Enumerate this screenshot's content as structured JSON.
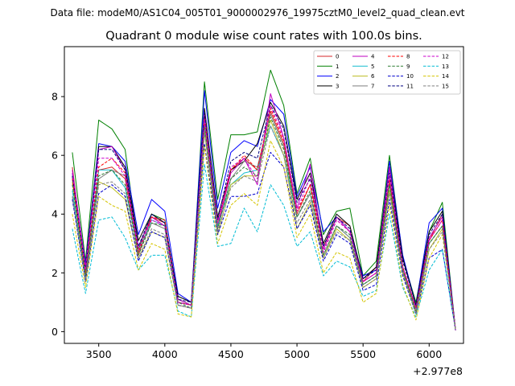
{
  "suptitle": "Data file: modeM0/AS1C04_005T01_9000002976_19975cztM0_level2_quad_clean.evt",
  "chart_data": {
    "type": "line",
    "title": "Quadrant 0 module wise count rates with 100.0s bins.",
    "xlabel": "",
    "ylabel": "",
    "x_offset_label": "+2.977e8",
    "xlim": [
      3240,
      6260
    ],
    "ylim": [
      -0.4,
      9.7
    ],
    "x_ticks": [
      3500,
      4000,
      4500,
      5000,
      5500,
      6000
    ],
    "x_tick_labels": [
      "3500",
      "4000",
      "4500",
      "5000",
      "5500",
      "6000"
    ],
    "y_ticks": [
      0,
      2,
      4,
      6,
      8
    ],
    "y_tick_labels": [
      "0",
      "2",
      "4",
      "6",
      "8"
    ],
    "grid": false,
    "legend_position": "top-right",
    "x": [
      3300,
      3400,
      3500,
      3600,
      3700,
      3800,
      3900,
      4000,
      4100,
      4200,
      4300,
      4400,
      4500,
      4600,
      4700,
      4800,
      4900,
      5000,
      5100,
      5200,
      5300,
      5400,
      5500,
      5600,
      5700,
      5800,
      5900,
      6000,
      6100,
      6200
    ],
    "series": [
      {
        "name": "0",
        "color": "#d62728",
        "dash": "solid",
        "values": [
          5.6,
          2.0,
          5.5,
          5.6,
          5.2,
          2.6,
          3.9,
          3.7,
          1.0,
          0.9,
          7.1,
          3.6,
          5.5,
          5.9,
          5.5,
          7.5,
          6.4,
          4.0,
          5.0,
          2.9,
          3.9,
          3.6,
          1.7,
          2.2,
          5.1,
          2.2,
          0.8,
          3.1,
          4.0,
          0.05
        ]
      },
      {
        "name": "1",
        "color": "#008000",
        "dash": "solid",
        "values": [
          6.1,
          2.4,
          7.2,
          6.9,
          6.2,
          2.8,
          4.0,
          3.8,
          1.1,
          0.9,
          8.5,
          4.5,
          6.7,
          6.7,
          6.8,
          8.9,
          7.7,
          4.7,
          5.9,
          3.3,
          4.1,
          4.2,
          1.9,
          2.4,
          6.0,
          2.5,
          1.0,
          3.4,
          4.4,
          0.05
        ]
      },
      {
        "name": "2",
        "color": "#0000ff",
        "dash": "solid",
        "values": [
          5.4,
          2.3,
          6.4,
          6.3,
          5.8,
          3.3,
          4.5,
          4.1,
          1.3,
          1.0,
          8.2,
          4.2,
          6.1,
          6.5,
          6.3,
          7.9,
          7.4,
          4.6,
          5.6,
          3.4,
          3.9,
          3.4,
          1.9,
          2.1,
          5.8,
          2.6,
          0.9,
          3.7,
          4.2,
          0.05
        ]
      },
      {
        "name": "3",
        "color": "#000000",
        "dash": "solid",
        "values": [
          5.3,
          2.2,
          6.3,
          6.3,
          5.6,
          3.1,
          4.0,
          3.7,
          1.2,
          1.0,
          7.6,
          3.9,
          5.5,
          5.8,
          6.4,
          7.8,
          7.0,
          4.5,
          5.4,
          3.0,
          4.0,
          3.6,
          1.8,
          2.2,
          5.6,
          2.5,
          0.9,
          3.4,
          4.1,
          0.05
        ]
      },
      {
        "name": "4",
        "color": "#bf00bf",
        "dash": "solid",
        "values": [
          5.5,
          2.2,
          6.2,
          6.3,
          5.5,
          2.9,
          3.9,
          3.6,
          1.1,
          0.9,
          7.4,
          3.6,
          5.4,
          5.9,
          5.0,
          8.1,
          6.6,
          4.2,
          5.7,
          2.8,
          3.9,
          3.4,
          1.7,
          2.0,
          5.6,
          2.2,
          0.8,
          3.2,
          3.9,
          0.05
        ]
      },
      {
        "name": "5",
        "color": "#17becf",
        "dash": "solid",
        "values": [
          4.8,
          1.8,
          5.5,
          5.5,
          4.9,
          2.7,
          3.8,
          3.6,
          1.0,
          0.9,
          6.8,
          3.6,
          5.0,
          5.4,
          5.5,
          7.0,
          6.0,
          3.9,
          4.7,
          2.6,
          3.6,
          3.2,
          1.6,
          1.9,
          5.0,
          2.0,
          0.7,
          3.0,
          3.6,
          0.05
        ]
      },
      {
        "name": "6",
        "color": "#bcbd22",
        "dash": "solid",
        "values": [
          5.1,
          1.9,
          5.1,
          4.9,
          4.5,
          2.5,
          3.4,
          3.2,
          0.9,
          0.8,
          6.8,
          3.3,
          5.0,
          5.3,
          5.3,
          7.2,
          6.0,
          3.5,
          4.4,
          2.5,
          3.5,
          3.1,
          1.5,
          1.8,
          4.8,
          2.0,
          0.6,
          2.8,
          3.5,
          0.05
        ]
      },
      {
        "name": "7",
        "color": "#7f7f7f",
        "dash": "solid",
        "values": [
          4.6,
          1.8,
          5.2,
          5.5,
          5.3,
          2.7,
          3.7,
          3.5,
          1.0,
          0.9,
          7.0,
          3.5,
          5.2,
          5.8,
          5.6,
          7.4,
          6.3,
          3.9,
          4.7,
          2.6,
          3.6,
          3.2,
          1.6,
          1.9,
          5.0,
          2.1,
          0.7,
          3.0,
          3.6,
          0.05
        ]
      },
      {
        "name": "8",
        "color": "#ff0000",
        "dash": "dashed",
        "values": [
          5.2,
          2.0,
          5.6,
          5.9,
          5.4,
          2.7,
          3.9,
          3.8,
          1.0,
          0.9,
          7.3,
          3.7,
          5.5,
          6.0,
          5.5,
          7.6,
          6.5,
          4.1,
          5.0,
          2.7,
          3.8,
          3.4,
          1.7,
          2.0,
          5.2,
          2.2,
          0.8,
          3.1,
          3.8,
          0.05
        ]
      },
      {
        "name": "9",
        "color": "#2e7d32",
        "dash": "dashed",
        "values": [
          5.0,
          1.9,
          5.3,
          5.5,
          5.0,
          2.6,
          3.7,
          3.6,
          1.0,
          0.8,
          7.0,
          3.5,
          5.2,
          5.6,
          5.3,
          7.3,
          6.2,
          3.9,
          4.8,
          2.6,
          3.6,
          3.3,
          1.6,
          1.9,
          5.0,
          2.1,
          0.7,
          3.0,
          3.6,
          0.05
        ]
      },
      {
        "name": "10",
        "color": "#0000cd",
        "dash": "dashed",
        "values": [
          4.5,
          1.7,
          4.7,
          5.0,
          4.6,
          2.4,
          3.4,
          3.2,
          0.9,
          0.8,
          6.4,
          3.3,
          4.6,
          4.6,
          4.7,
          6.1,
          5.6,
          3.5,
          4.3,
          2.4,
          3.3,
          3.0,
          1.4,
          1.6,
          4.5,
          1.9,
          0.6,
          2.5,
          2.8,
          0.05
        ]
      },
      {
        "name": "11",
        "color": "#000080",
        "dash": "dashed",
        "values": [
          5.3,
          2.1,
          6.2,
          6.2,
          5.5,
          2.9,
          4.0,
          3.7,
          1.1,
          1.0,
          7.5,
          3.8,
          5.8,
          6.1,
          5.9,
          7.7,
          6.9,
          4.4,
          5.2,
          2.9,
          3.9,
          3.5,
          1.8,
          2.1,
          5.4,
          2.4,
          0.9,
          3.3,
          4.0,
          0.05
        ]
      },
      {
        "name": "12",
        "color": "#cc00cc",
        "dash": "dashed",
        "values": [
          5.4,
          2.1,
          5.9,
          5.9,
          5.3,
          2.8,
          3.8,
          3.6,
          1.0,
          0.9,
          7.2,
          3.7,
          5.6,
          5.9,
          5.2,
          7.7,
          6.6,
          4.1,
          5.3,
          2.7,
          3.8,
          3.4,
          1.7,
          2.0,
          5.3,
          2.2,
          0.8,
          3.1,
          3.8,
          0.05
        ]
      },
      {
        "name": "13",
        "color": "#00bcd4",
        "dash": "dashed",
        "values": [
          3.5,
          1.3,
          3.8,
          3.9,
          3.2,
          2.1,
          2.6,
          2.6,
          0.7,
          0.5,
          5.7,
          2.9,
          3.0,
          4.2,
          3.4,
          5.0,
          4.3,
          2.9,
          3.4,
          1.9,
          2.4,
          2.2,
          1.2,
          1.4,
          4.0,
          1.5,
          0.5,
          2.1,
          2.8,
          0.05
        ]
      },
      {
        "name": "14",
        "color": "#d4c400",
        "dash": "dashed",
        "values": [
          4.0,
          1.5,
          4.6,
          4.3,
          4.1,
          2.1,
          3.0,
          2.8,
          0.6,
          0.5,
          6.3,
          3.0,
          4.3,
          4.7,
          4.3,
          6.5,
          5.6,
          3.2,
          4.0,
          2.0,
          2.7,
          2.5,
          1.0,
          1.3,
          4.3,
          1.6,
          0.4,
          2.5,
          3.3,
          0.05
        ]
      },
      {
        "name": "15",
        "color": "#808080",
        "dash": "dashed",
        "values": [
          4.6,
          1.7,
          5.0,
          5.1,
          4.7,
          2.5,
          3.5,
          3.3,
          0.9,
          0.8,
          6.8,
          3.4,
          4.9,
          5.3,
          5.1,
          7.0,
          6.0,
          3.7,
          4.5,
          2.5,
          3.4,
          3.1,
          1.5,
          1.8,
          4.7,
          2.0,
          0.6,
          2.8,
          3.4,
          0.05
        ]
      }
    ]
  }
}
